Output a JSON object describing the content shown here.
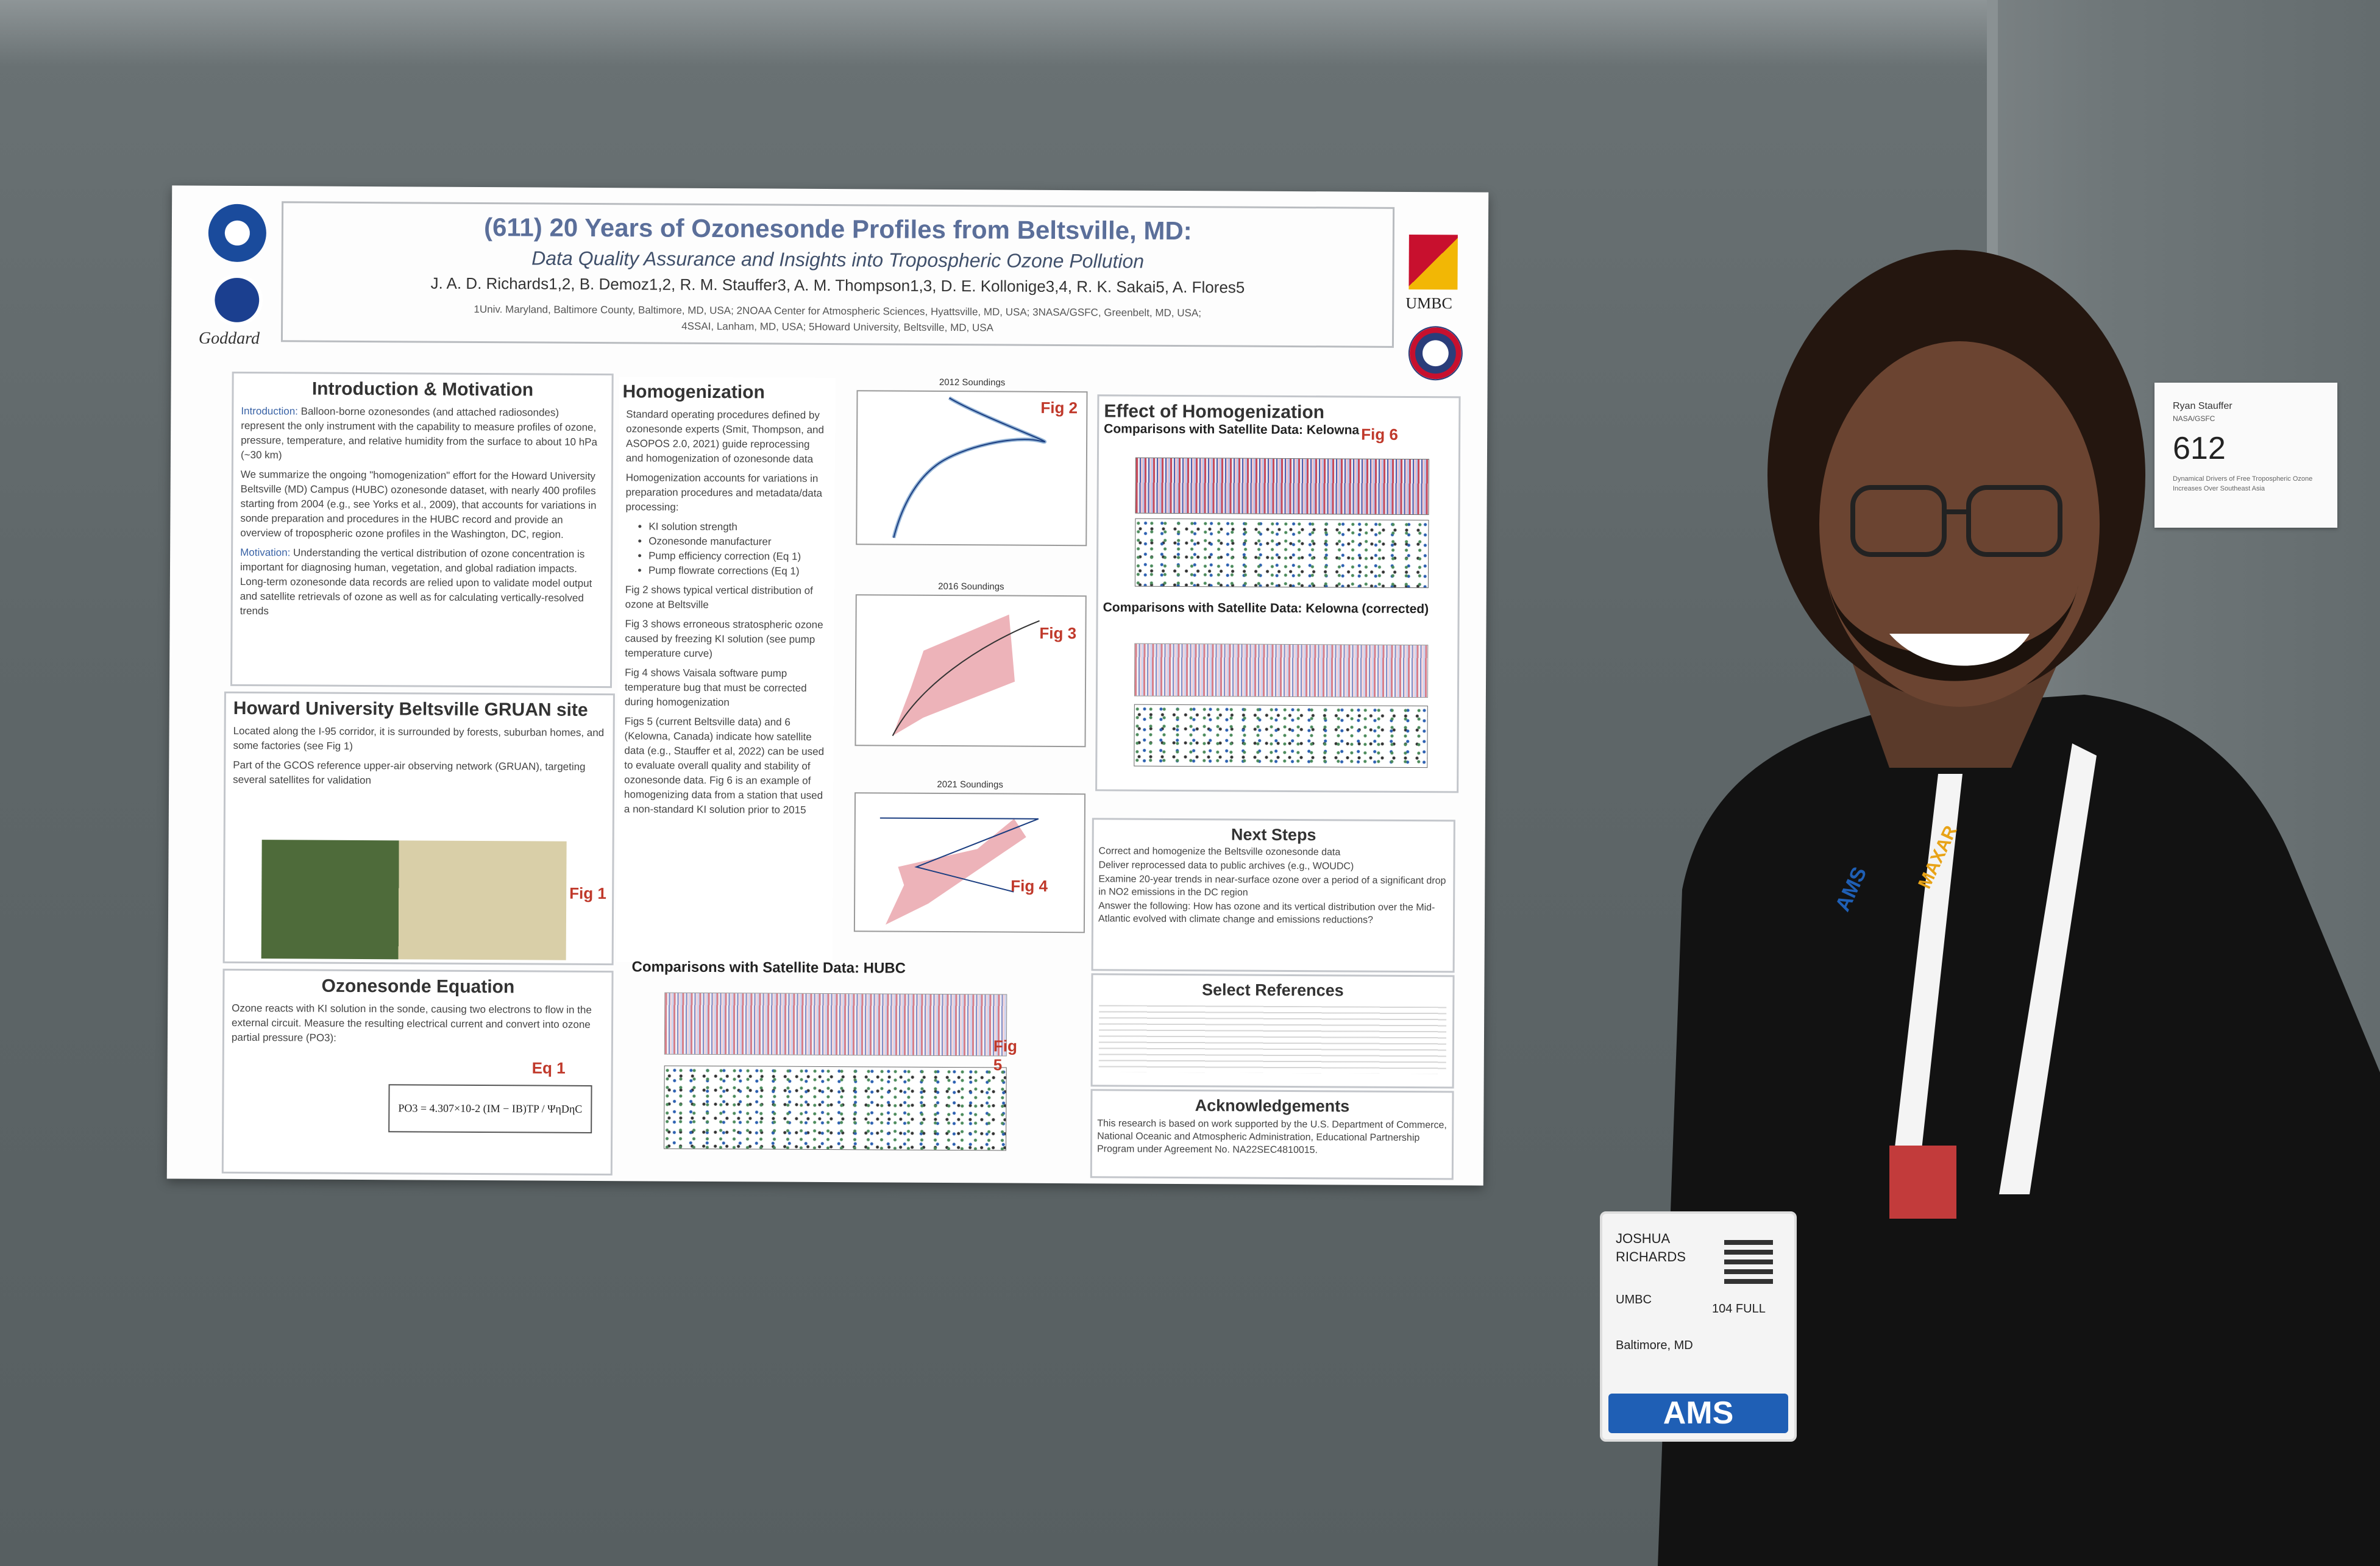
{
  "poster": {
    "title": "(611) 20 Years of Ozonesonde Profiles from Beltsville, MD:",
    "subtitle": "Data Quality Assurance and Insights into Tropospheric Ozone Pollution",
    "authors": "J. A. D. Richards1,2, B. Demoz1,2, R. M. Stauffer3, A. M. Thompson1,3, D. E. Kollonige3,4, R. K. Sakai5, A. Flores5",
    "affiliations_1": "1Univ. Maryland, Baltimore County, Baltimore, MD, USA; 2NOAA Center for Atmospheric Sciences, Hyattsville, MD, USA; 3NASA/GSFC, Greenbelt, MD, USA;",
    "affiliations_2": "4SSAI, Lanham, MD, USA; 5Howard University, Beltsville, MD, USA",
    "logos": {
      "noaa": "NOAA",
      "nasa": "NASA",
      "goddard": "Goddard",
      "umbc": "UMBC"
    },
    "intro": {
      "heading": "Introduction & Motivation",
      "p1_label": "Introduction:",
      "p1": "Balloon-borne ozonesondes (and attached radiosondes) represent the only instrument with the capability to measure profiles of ozone, pressure, temperature, and relative humidity from the surface to about 10 hPa (~30 km)",
      "p2": "We summarize the ongoing \"homogenization\" effort for the Howard University Beltsville (MD) Campus (HUBC) ozonesonde dataset, with nearly 400 profiles starting from 2004 (e.g., see Yorks et al., 2009), that accounts for variations in sonde preparation and procedures in the HUBC record and provide an overview of tropospheric ozone profiles in the Washington, DC, region.",
      "p3_label": "Motivation:",
      "p3": "Understanding the vertical distribution of ozone concentration is important for diagnosing human, vegetation, and global radiation impacts. Long-term ozonesonde data records are relied upon to validate model output and satellite retrievals of ozone as well as for calculating vertically-resolved trends"
    },
    "site": {
      "heading": "Howard University Beltsville GRUAN site",
      "b1": "Located along the I-95 corridor, it is surrounded by forests, suburban homes, and some factories (see Fig 1)",
      "b2": "Part of the GCOS reference upper-air observing network (GRUAN), targeting several satellites for validation",
      "fig": "Fig 1"
    },
    "equation": {
      "heading": "Ozonesonde Equation",
      "p": "Ozone reacts with KI solution in the sonde, causing two electrons to flow in the external circuit. Measure the resulting electrical current and convert into ozone partial pressure (PO3):",
      "label": "Eq 1",
      "formula": "PO3 = 4.307×10-2 (IM − IB)TP / ΨηDηC"
    },
    "homog": {
      "heading": "Homogenization",
      "p1": "Standard operating procedures defined by ozonesonde experts (Smit, Thompson, and ASOPOS 2.0, 2021) guide reprocessing and homogenization of ozonesonde data",
      "p2": "Homogenization accounts for variations in preparation procedures and metadata/data processing:",
      "items": [
        "KI solution strength",
        "Ozonesonde manufacturer",
        "Pump efficiency correction (Eq 1)",
        "Pump flowrate corrections (Eq 1)"
      ],
      "p3": "Fig 2 shows typical vertical distribution of ozone at Beltsville",
      "p4": "Fig 3 shows erroneous stratospheric ozone caused by freezing KI solution (see pump temperature curve)",
      "p5": "Fig 4 shows Vaisala software pump temperature bug that must be corrected during homogenization",
      "p6": "Figs 5 (current Beltsville data) and 6 (Kelowna, Canada) indicate how satellite data (e.g., Stauffer et al, 2022) can be used to evaluate overall quality and stability of ozonesonde data. Fig 6 is an example of homogenizing data from a station that used a non-standard KI solution prior to 2015"
    },
    "figs": {
      "fig2_title": "2012 Soundings",
      "fig2": "Fig 2",
      "fig3_title": "2016 Soundings",
      "fig3": "Fig 3",
      "fig4_title": "2021 Soundings",
      "fig4": "Fig 4",
      "fig5_title": "Comparisons with Satellite Data: HUBC",
      "fig5": "Fig 5",
      "fig6": "Fig 6"
    },
    "effect": {
      "heading": "Effect of Homogenization",
      "sub1": "Comparisons with Satellite Data: Kelowna",
      "sub2": "Comparisons with Satellite Data: Kelowna (corrected)"
    },
    "next": {
      "heading": "Next Steps",
      "items": [
        "Correct and homogenize the Beltsville ozonesonde data",
        "Deliver reprocessed data to public archives (e.g., WOUDC)",
        "Examine 20-year trends in near-surface ozone over a period of a significant drop in NO2 emissions in the DC region",
        "Answer the following: How has ozone and its vertical distribution over the Mid-Atlantic evolved with climate change and emissions reductions?"
      ]
    },
    "refs": {
      "heading": "Select References"
    },
    "ack": {
      "heading": "Acknowledgements",
      "p": "This research is based on work supported by the U.S. Department of Commerce, National Oceanic and Atmospheric Administration, Educational Partnership Program under Agreement No. NA22SEC4810015."
    }
  },
  "board_tag": {
    "name": "Ryan Stauffer",
    "affil": "NASA/GSFC",
    "number": "612",
    "desc": "Dynamical Drivers of Free Tropospheric Ozone Increases Over Southeast Asia"
  },
  "badge": {
    "first": "JOSHUA",
    "last": "RICHARDS",
    "org": "UMBC",
    "code": "104 FULL",
    "city": "Baltimore, MD",
    "ams": "AMS"
  },
  "lanyard": {
    "text1": "MAXAR",
    "text2": "AMS"
  },
  "colors": {
    "board": "#5f6769",
    "poster": "#fdfdfd",
    "title": "#5b6f9a",
    "fig_label": "#c0392b",
    "badge_blue": "#1f5fb5"
  }
}
